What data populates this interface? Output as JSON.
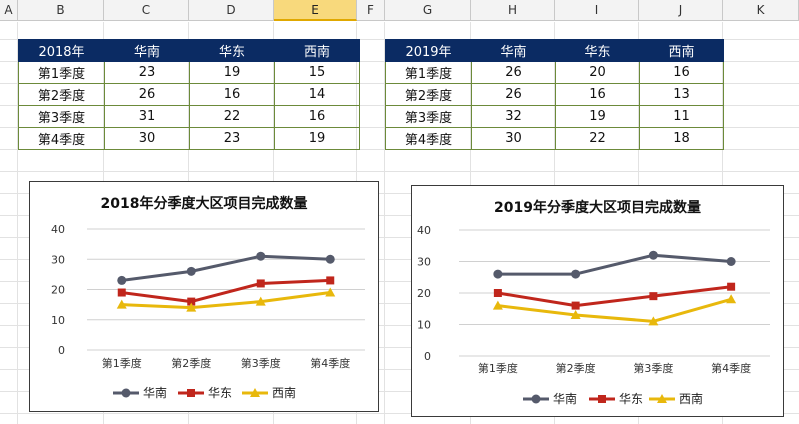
{
  "columns": [
    "A",
    "B",
    "C",
    "D",
    "E",
    "F",
    "G",
    "H",
    "I",
    "J",
    "K"
  ],
  "selected_column": "E",
  "table2018": {
    "header": [
      "2018年",
      "华南",
      "华东",
      "西南"
    ],
    "rows": [
      {
        "label": "第1季度",
        "values": [
          "23",
          "19",
          "15"
        ]
      },
      {
        "label": "第2季度",
        "values": [
          "26",
          "16",
          "14"
        ]
      },
      {
        "label": "第3季度",
        "values": [
          "31",
          "22",
          "16"
        ]
      },
      {
        "label": "第4季度",
        "values": [
          "30",
          "23",
          "19"
        ]
      }
    ]
  },
  "table2019": {
    "header": [
      "2019年",
      "华南",
      "华东",
      "西南"
    ],
    "rows": [
      {
        "label": "第1季度",
        "values": [
          "26",
          "20",
          "16"
        ]
      },
      {
        "label": "第2季度",
        "values": [
          "26",
          "16",
          "13"
        ]
      },
      {
        "label": "第3季度",
        "values": [
          "32",
          "19",
          "11"
        ]
      },
      {
        "label": "第4季度",
        "values": [
          "30",
          "22",
          "18"
        ]
      }
    ]
  },
  "chart_data": [
    {
      "type": "line",
      "title": "2018年分季度大区项目完成数量",
      "categories": [
        "第1季度",
        "第2季度",
        "第3季度",
        "第4季度"
      ],
      "ylim": [
        0,
        40
      ],
      "yticks": [
        0,
        10,
        20,
        30,
        40
      ],
      "grid": true,
      "legend": "bottom",
      "series": [
        {
          "name": "华南",
          "values": [
            23,
            26,
            31,
            30
          ],
          "color": "#555a6b",
          "marker": "circle"
        },
        {
          "name": "华东",
          "values": [
            19,
            16,
            22,
            23
          ],
          "color": "#c0261c",
          "marker": "square"
        },
        {
          "name": "西南",
          "values": [
            15,
            14,
            16,
            19
          ],
          "color": "#e8b80c",
          "marker": "triangle"
        }
      ]
    },
    {
      "type": "line",
      "title": "2019年分季度大区项目完成数量",
      "categories": [
        "第1季度",
        "第2季度",
        "第3季度",
        "第4季度"
      ],
      "ylim": [
        0,
        40
      ],
      "yticks": [
        0,
        10,
        20,
        30,
        40
      ],
      "grid": true,
      "legend": "bottom",
      "series": [
        {
          "name": "华南",
          "values": [
            26,
            26,
            32,
            30
          ],
          "color": "#555a6b",
          "marker": "circle"
        },
        {
          "name": "华东",
          "values": [
            20,
            16,
            19,
            22
          ],
          "color": "#c0261c",
          "marker": "square"
        },
        {
          "name": "西南",
          "values": [
            16,
            13,
            11,
            18
          ],
          "color": "#e8b80c",
          "marker": "triangle"
        }
      ]
    }
  ]
}
